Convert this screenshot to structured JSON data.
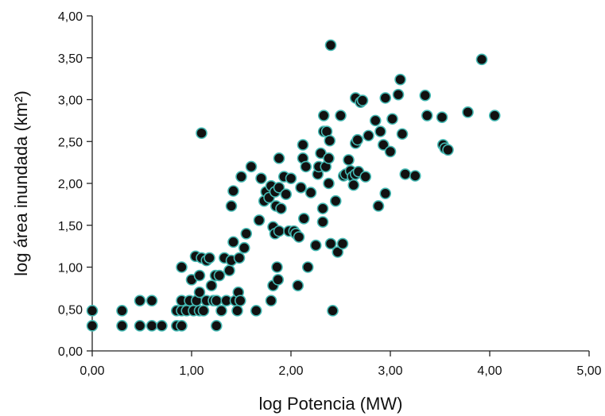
{
  "chart_data": {
    "type": "scatter",
    "title": "",
    "xlabel": "log Potencia (MW)",
    "ylabel": "log área inundada (km²)",
    "xlim": [
      0,
      5
    ],
    "ylim": [
      0,
      4
    ],
    "x_ticks": [
      "0,00",
      "1,00",
      "2,00",
      "3,00",
      "4,00",
      "5,00"
    ],
    "y_ticks": [
      "0,00",
      "0,50",
      "1,00",
      "1,50",
      "2,00",
      "2,50",
      "3,00",
      "3,50",
      "4,00"
    ],
    "grid": false,
    "colors": {
      "marker_fill": "#111111",
      "marker_edge": "#44b8b2"
    },
    "points": [
      [
        0.0,
        0.3
      ],
      [
        0.0,
        0.48
      ],
      [
        0.3,
        0.3
      ],
      [
        0.3,
        0.48
      ],
      [
        0.48,
        0.3
      ],
      [
        0.48,
        0.6
      ],
      [
        0.6,
        0.3
      ],
      [
        0.6,
        0.6
      ],
      [
        0.7,
        0.3
      ],
      [
        0.85,
        0.3
      ],
      [
        0.85,
        0.48
      ],
      [
        0.9,
        0.3
      ],
      [
        0.9,
        0.48
      ],
      [
        0.9,
        0.6
      ],
      [
        0.9,
        1.0
      ],
      [
        0.95,
        0.48
      ],
      [
        0.98,
        0.6
      ],
      [
        1.0,
        0.85
      ],
      [
        1.02,
        0.48
      ],
      [
        1.04,
        1.13
      ],
      [
        1.05,
        0.6
      ],
      [
        1.08,
        0.48
      ],
      [
        1.08,
        0.7
      ],
      [
        1.08,
        0.9
      ],
      [
        1.1,
        1.11
      ],
      [
        1.1,
        2.6
      ],
      [
        1.12,
        0.48
      ],
      [
        1.15,
        0.6
      ],
      [
        1.15,
        1.08
      ],
      [
        1.18,
        1.11
      ],
      [
        1.2,
        0.78
      ],
      [
        1.22,
        0.6
      ],
      [
        1.24,
        0.9
      ],
      [
        1.25,
        0.6
      ],
      [
        1.25,
        0.3
      ],
      [
        1.28,
        0.9
      ],
      [
        1.3,
        0.48
      ],
      [
        1.33,
        1.11
      ],
      [
        1.35,
        0.6
      ],
      [
        1.38,
        0.96
      ],
      [
        1.4,
        1.08
      ],
      [
        1.4,
        1.73
      ],
      [
        1.42,
        1.3
      ],
      [
        1.42,
        1.91
      ],
      [
        1.44,
        0.6
      ],
      [
        1.46,
        0.48
      ],
      [
        1.47,
        0.7
      ],
      [
        1.48,
        1.11
      ],
      [
        1.49,
        0.6
      ],
      [
        1.5,
        2.08
      ],
      [
        1.53,
        1.23
      ],
      [
        1.55,
        1.4
      ],
      [
        1.6,
        2.2
      ],
      [
        1.65,
        0.48
      ],
      [
        1.68,
        1.56
      ],
      [
        1.7,
        2.06
      ],
      [
        1.73,
        1.79
      ],
      [
        1.75,
        1.9
      ],
      [
        1.78,
        1.83
      ],
      [
        1.8,
        0.6
      ],
      [
        1.8,
        1.97
      ],
      [
        1.82,
        0.78
      ],
      [
        1.82,
        1.48
      ],
      [
        1.84,
        1.4
      ],
      [
        1.84,
        1.9
      ],
      [
        1.85,
        1.73
      ],
      [
        1.86,
        1.0
      ],
      [
        1.87,
        0.85
      ],
      [
        1.88,
        1.43
      ],
      [
        1.88,
        1.95
      ],
      [
        1.88,
        2.3
      ],
      [
        1.9,
        1.7
      ],
      [
        1.93,
        2.08
      ],
      [
        1.95,
        1.87
      ],
      [
        1.98,
        1.43
      ],
      [
        2.0,
        2.06
      ],
      [
        2.03,
        1.43
      ],
      [
        2.05,
        1.4
      ],
      [
        2.07,
        0.78
      ],
      [
        2.08,
        1.36
      ],
      [
        2.1,
        1.95
      ],
      [
        2.12,
        2.3
      ],
      [
        2.12,
        2.46
      ],
      [
        2.13,
        1.58
      ],
      [
        2.15,
        2.2
      ],
      [
        2.17,
        1.0
      ],
      [
        2.2,
        1.89
      ],
      [
        2.25,
        1.26
      ],
      [
        2.27,
        2.11
      ],
      [
        2.28,
        2.2
      ],
      [
        2.3,
        2.36
      ],
      [
        2.32,
        1.7
      ],
      [
        2.32,
        1.54
      ],
      [
        2.33,
        2.62
      ],
      [
        2.33,
        2.81
      ],
      [
        2.35,
        2.2
      ],
      [
        2.36,
        2.62
      ],
      [
        2.38,
        2.3
      ],
      [
        2.38,
        2.0
      ],
      [
        2.39,
        2.51
      ],
      [
        2.4,
        3.65
      ],
      [
        2.4,
        1.28
      ],
      [
        2.42,
        0.48
      ],
      [
        2.45,
        1.79
      ],
      [
        2.47,
        1.18
      ],
      [
        2.5,
        2.81
      ],
      [
        2.52,
        1.28
      ],
      [
        2.53,
        2.09
      ],
      [
        2.55,
        2.11
      ],
      [
        2.58,
        2.28
      ],
      [
        2.6,
        2.15
      ],
      [
        2.62,
        2.08
      ],
      [
        2.63,
        1.98
      ],
      [
        2.65,
        2.11
      ],
      [
        2.65,
        2.48
      ],
      [
        2.65,
        3.02
      ],
      [
        2.67,
        2.52
      ],
      [
        2.68,
        2.14
      ],
      [
        2.7,
        2.97
      ],
      [
        2.72,
        2.99
      ],
      [
        2.75,
        2.08
      ],
      [
        2.78,
        2.57
      ],
      [
        2.85,
        2.75
      ],
      [
        2.88,
        1.73
      ],
      [
        2.9,
        2.62
      ],
      [
        2.93,
        2.46
      ],
      [
        2.95,
        1.88
      ],
      [
        2.95,
        3.02
      ],
      [
        3.0,
        2.38
      ],
      [
        3.02,
        2.77
      ],
      [
        3.08,
        3.06
      ],
      [
        3.1,
        3.24
      ],
      [
        3.12,
        2.59
      ],
      [
        3.15,
        2.11
      ],
      [
        3.25,
        2.09
      ],
      [
        3.35,
        3.05
      ],
      [
        3.37,
        2.81
      ],
      [
        3.52,
        2.79
      ],
      [
        3.53,
        2.46
      ],
      [
        3.55,
        2.42
      ],
      [
        3.58,
        2.4
      ],
      [
        3.78,
        2.85
      ],
      [
        3.92,
        3.48
      ],
      [
        4.05,
        2.81
      ]
    ]
  }
}
